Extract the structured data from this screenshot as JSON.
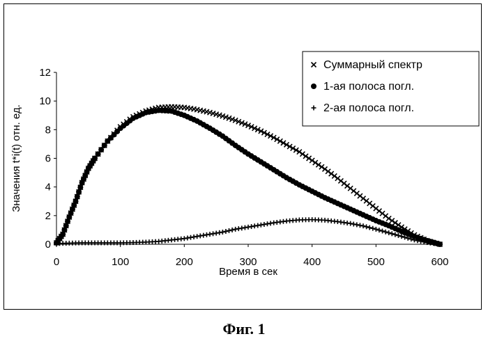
{
  "figure": {
    "caption": "Фиг. 1"
  },
  "chart_data": {
    "type": "scatter",
    "xlabel": "Время в сек",
    "ylabel": "Значения t*i(t) отн. ед.",
    "xlim": [
      0,
      600
    ],
    "ylim": [
      0,
      12
    ],
    "x_ticks": [
      0,
      100,
      200,
      300,
      400,
      500,
      600
    ],
    "y_ticks": [
      0,
      2,
      4,
      6,
      8,
      10,
      12
    ],
    "grid": false,
    "legend": "top-right",
    "series": [
      {
        "name": "Суммарный спектр",
        "marker": "x",
        "color": "#000000",
        "x": [
          0,
          10,
          20,
          30,
          40,
          50,
          60,
          80,
          100,
          120,
          140,
          160,
          180,
          200,
          220,
          240,
          260,
          280,
          300,
          320,
          340,
          360,
          380,
          400,
          420,
          440,
          460,
          480,
          500,
          520,
          540,
          560,
          580,
          600
        ],
        "y": [
          0.1,
          0.7,
          1.9,
          3.0,
          4.3,
          5.3,
          6.0,
          7.2,
          8.2,
          8.9,
          9.3,
          9.55,
          9.6,
          9.55,
          9.4,
          9.2,
          8.95,
          8.65,
          8.3,
          7.9,
          7.45,
          6.95,
          6.45,
          5.85,
          5.25,
          4.6,
          3.9,
          3.2,
          2.5,
          1.8,
          1.2,
          0.65,
          0.25,
          0
        ]
      },
      {
        "name": "1-ая полоса погл.",
        "marker": "circle",
        "color": "#000000",
        "x": [
          0,
          10,
          20,
          30,
          40,
          50,
          60,
          80,
          100,
          120,
          140,
          160,
          180,
          200,
          220,
          240,
          260,
          280,
          300,
          320,
          340,
          360,
          380,
          400,
          420,
          440,
          460,
          480,
          500,
          520,
          540,
          560,
          580,
          600
        ],
        "y": [
          0.1,
          0.7,
          1.9,
          3.0,
          4.3,
          5.3,
          6.0,
          7.2,
          8.1,
          8.8,
          9.2,
          9.35,
          9.3,
          9.0,
          8.6,
          8.1,
          7.55,
          6.9,
          6.3,
          5.75,
          5.2,
          4.65,
          4.15,
          3.7,
          3.25,
          2.85,
          2.45,
          2.05,
          1.65,
          1.3,
          0.9,
          0.55,
          0.25,
          0
        ]
      },
      {
        "name": "2-ая полоса погл.",
        "marker": "plus",
        "color": "#000000",
        "x": [
          0,
          20,
          40,
          60,
          80,
          100,
          120,
          140,
          160,
          180,
          200,
          220,
          240,
          260,
          280,
          300,
          320,
          340,
          360,
          380,
          400,
          420,
          440,
          460,
          480,
          500,
          520,
          540,
          560,
          580,
          600
        ],
        "y": [
          0.05,
          0.08,
          0.1,
          0.1,
          0.1,
          0.1,
          0.12,
          0.15,
          0.2,
          0.3,
          0.4,
          0.55,
          0.7,
          0.85,
          1.05,
          1.2,
          1.35,
          1.5,
          1.62,
          1.7,
          1.72,
          1.68,
          1.58,
          1.45,
          1.28,
          1.05,
          0.8,
          0.55,
          0.3,
          0.12,
          0
        ]
      }
    ]
  }
}
